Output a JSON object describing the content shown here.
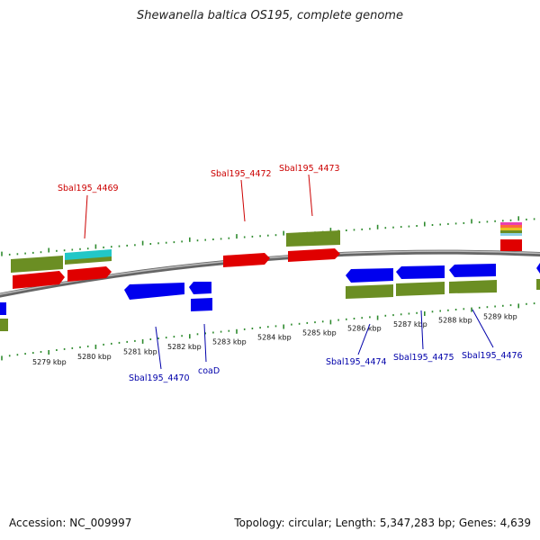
{
  "title": "Shewanella baltica OS195, complete genome",
  "accession": "Accession: NC_009997",
  "summary": "Topology: circular; Length: 5,347,283 bp; Genes: 4,639",
  "colors": {
    "forward": "#ff0000",
    "reverse": "#0000ff",
    "feature": "#6b8e23",
    "forward_label": "#cc0000",
    "reverse_label": "#0000aa",
    "backbone": "#8a8a8a",
    "ticks": "#2e8b2e"
  },
  "scale": {
    "ticks": [
      {
        "label": "5279 kbp"
      },
      {
        "label": "5280 kbp"
      },
      {
        "label": "5281 kbp"
      },
      {
        "label": "5282 kbp"
      },
      {
        "label": "5283 kbp"
      },
      {
        "label": "5284 kbp"
      },
      {
        "label": "5285 kbp"
      },
      {
        "label": "5286 kbp"
      },
      {
        "label": "5287 kbp"
      },
      {
        "label": "5288 kbp"
      },
      {
        "label": "5289 kbp"
      }
    ]
  },
  "gene_labels": [
    {
      "text": "Sbal195_4469",
      "strand": "forward"
    },
    {
      "text": "Sbal195_4472",
      "strand": "forward"
    },
    {
      "text": "Sbal195_4473",
      "strand": "forward"
    },
    {
      "text": "Sbal195_4470",
      "strand": "reverse"
    },
    {
      "text": "coaD",
      "strand": "reverse"
    },
    {
      "text": "Sbal195_4474",
      "strand": "reverse"
    },
    {
      "text": "Sbal195_4475",
      "strand": "reverse"
    },
    {
      "text": "Sbal195_4476",
      "strand": "reverse"
    }
  ]
}
